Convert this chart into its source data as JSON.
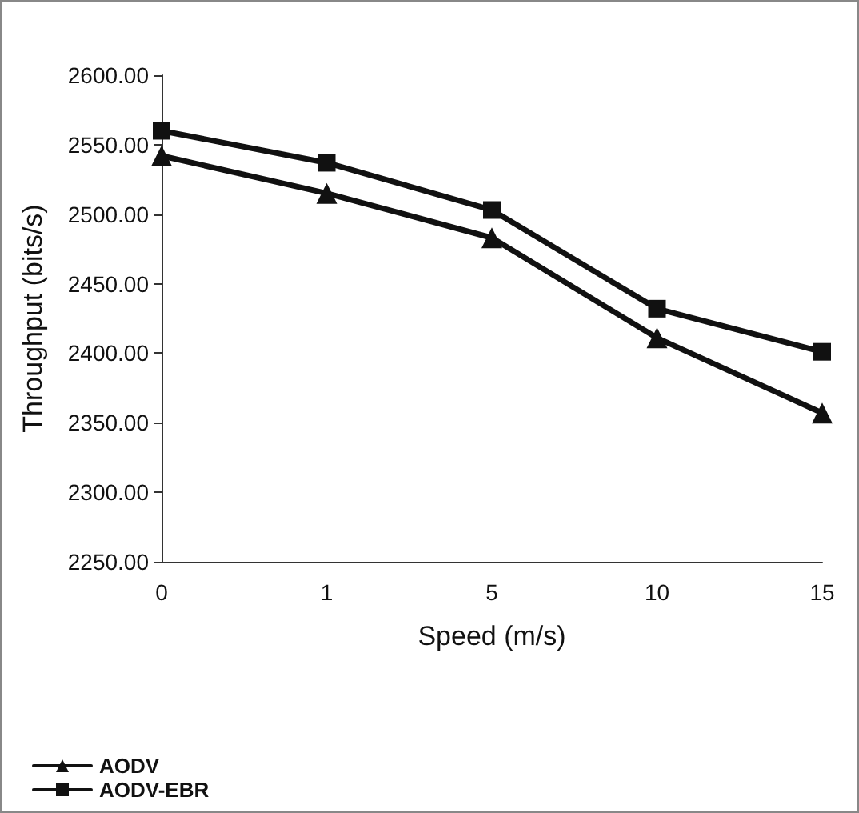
{
  "chart_data": {
    "type": "line",
    "xlabel": "Speed (m/s)",
    "ylabel": "Throughput (bits/s)",
    "categories": [
      "0",
      "1",
      "5",
      "10",
      "15"
    ],
    "series": [
      {
        "name": "AODV",
        "color": "#111111",
        "marker": "triangle",
        "values": [
          2542,
          2515,
          2483,
          2411,
          2357
        ]
      },
      {
        "name": "AODV-EBR",
        "color": "#111111",
        "marker": "square",
        "values": [
          2560,
          2537,
          2503,
          2432,
          2401
        ]
      }
    ],
    "ylim": [
      2250,
      2600
    ],
    "yticks": [
      {
        "value": 2250,
        "label": "2250.00"
      },
      {
        "value": 2300,
        "label": "2300.00"
      },
      {
        "value": 2350,
        "label": "2350.00"
      },
      {
        "value": 2400,
        "label": "2400.00"
      },
      {
        "value": 2450,
        "label": "2450.00"
      },
      {
        "value": 2500,
        "label": "2500.00"
      },
      {
        "value": 2550,
        "label": "2550.00"
      },
      {
        "value": 2600,
        "label": "2600.00"
      }
    ],
    "grid": false,
    "legend": "bottom left",
    "line_style": "solid"
  }
}
